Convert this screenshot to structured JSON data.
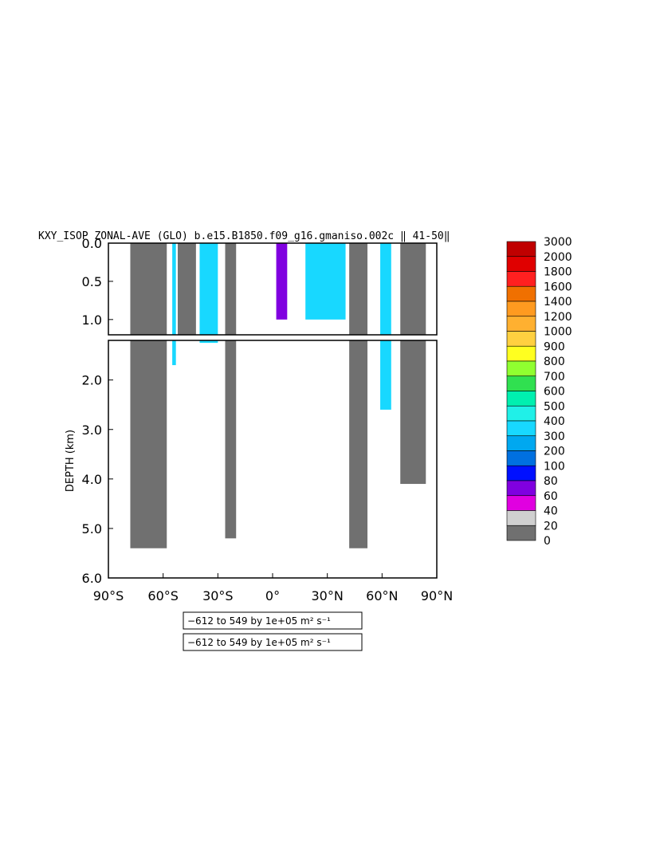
{
  "chart_data": {
    "type": "heatmap",
    "title": "KXY_ISOP ZONAL-AVE (GLO) b.e15.B1850.f09_g16.gmaniso.002c ‖ 41-50‖",
    "ylabel": "DEPTH (km)",
    "xlabel": "",
    "x_ticks": [
      "90°S",
      "60°S",
      "30°S",
      "0°",
      "30°N",
      "60°N",
      "90°N"
    ],
    "upper_panel": {
      "y_ticks": [
        "0.0",
        "0.5",
        "1.0"
      ],
      "ylim": [
        0,
        1.2
      ]
    },
    "lower_panel": {
      "y_ticks": [
        "2.0",
        "3.0",
        "4.0",
        "5.0",
        "6.0"
      ],
      "ylim": [
        1.2,
        6.0
      ]
    },
    "xlim": [
      -90,
      90
    ],
    "colorbar": {
      "levels": [
        "3000",
        "2000",
        "1800",
        "1600",
        "1400",
        "1200",
        "1000",
        "900",
        "800",
        "700",
        "600",
        "500",
        "400",
        "300",
        "200",
        "100",
        "80",
        "60",
        "40",
        "20",
        "0"
      ],
      "colors": [
        "#c00000",
        "#e00000",
        "#ff2020",
        "#f07000",
        "#ff9a20",
        "#ffb030",
        "#ffd040",
        "#ffff20",
        "#90ff30",
        "#30e050",
        "#00f0b0",
        "#20f0e8",
        "#18d8ff",
        "#00a8f0",
        "#0070e0",
        "#0010ff",
        "#8000e0",
        "#e000e0",
        "#d0d0d0",
        "#707070"
      ]
    },
    "range_boxes": [
      {
        "text": "−612 to 549 by 1e+05 m² s⁻¹"
      },
      {
        "text": "−612 to 549 by 1e+05 m² s⁻¹"
      }
    ],
    "features": [
      {
        "lat": [
          -78,
          -58
        ],
        "depth": [
          0,
          5.4
        ],
        "value": 10
      },
      {
        "lat": [
          -55,
          -53
        ],
        "depth": [
          0,
          1.7
        ],
        "value": 300
      },
      {
        "lat": [
          -52,
          -42
        ],
        "depth": [
          0,
          1.2
        ],
        "value": 10
      },
      {
        "lat": [
          -40,
          -30
        ],
        "depth": [
          0,
          1.25
        ],
        "value": 300
      },
      {
        "lat": [
          -26,
          -20
        ],
        "depth": [
          0,
          5.2
        ],
        "value": 10
      },
      {
        "lat": [
          2,
          8
        ],
        "depth": [
          0,
          1.0
        ],
        "value": 60
      },
      {
        "lat": [
          18,
          40
        ],
        "depth": [
          0,
          1.0
        ],
        "value": 300
      },
      {
        "lat": [
          42,
          52
        ],
        "depth": [
          0,
          5.4
        ],
        "value": 10
      },
      {
        "lat": [
          59,
          65
        ],
        "depth": [
          0,
          2.6
        ],
        "value": 300
      },
      {
        "lat": [
          70,
          84
        ],
        "depth": [
          0,
          4.1
        ],
        "value": 10
      }
    ]
  }
}
